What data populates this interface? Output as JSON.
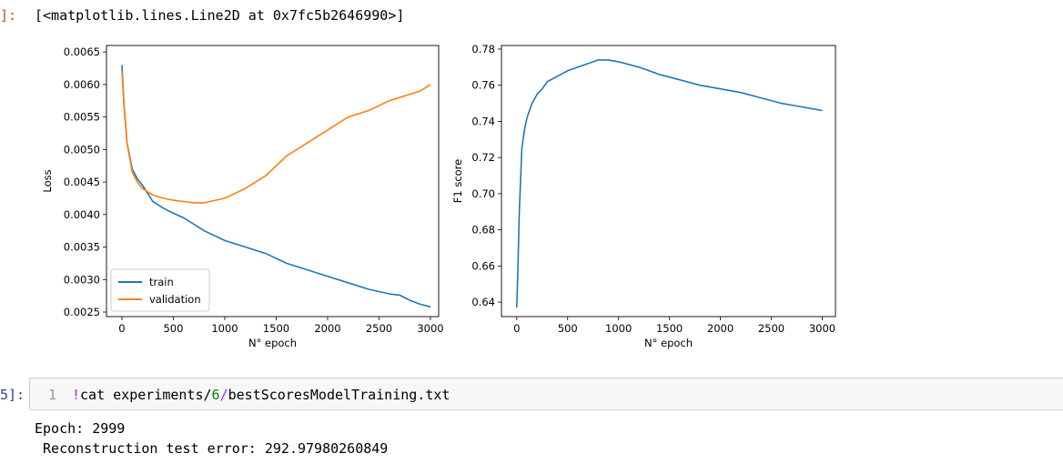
{
  "output_prompt": "]:",
  "output_repr": "[<matplotlib.lines.Line2D at 0x7fc5b2646990>]",
  "input_prompt": "5]:",
  "input_cell": {
    "line_number": "1",
    "bang": "!",
    "cmd_prefix": "cat experiments/",
    "cmd_num": "6",
    "cmd_sep": "/",
    "cmd_suffix": "bestScoresModelTraining.txt"
  },
  "stdout_lines": [
    "Epoch: 2999",
    " Reconstruction test error: 292.97980260849"
  ],
  "chart_data": [
    {
      "type": "line",
      "xlabel": "N° epoch",
      "ylabel": "Loss",
      "xlim": [
        -150,
        3080
      ],
      "ylim": [
        0.00243,
        0.0066
      ],
      "xticks": [
        0,
        500,
        1000,
        1500,
        2000,
        2500,
        3000
      ],
      "yticks": [
        0.0025,
        0.003,
        0.0035,
        0.004,
        0.0045,
        0.005,
        0.0055,
        0.006,
        0.0065
      ],
      "ytick_labels": [
        "0.0025",
        "0.0030",
        "0.0035",
        "0.0040",
        "0.0045",
        "0.0050",
        "0.0055",
        "0.0060",
        "0.0065"
      ],
      "legend": "bottom-left",
      "series": [
        {
          "name": "train",
          "color": "#1f77b4",
          "x": [
            0,
            20,
            50,
            100,
            150,
            200,
            300,
            400,
            500,
            600,
            700,
            800,
            1000,
            1200,
            1400,
            1600,
            1800,
            2000,
            2200,
            2400,
            2600,
            2700,
            2800,
            2900,
            3000
          ],
          "y": [
            0.0063,
            0.0057,
            0.0051,
            0.0047,
            0.00455,
            0.00445,
            0.0042,
            0.0041,
            0.00402,
            0.00395,
            0.00385,
            0.00375,
            0.0036,
            0.0035,
            0.0034,
            0.00325,
            0.00315,
            0.00305,
            0.00295,
            0.00285,
            0.00278,
            0.00276,
            0.00268,
            0.00262,
            0.00258
          ]
        },
        {
          "name": "validation",
          "color": "#ff7f0e",
          "x": [
            0,
            20,
            50,
            100,
            150,
            200,
            300,
            400,
            500,
            600,
            700,
            800,
            1000,
            1200,
            1400,
            1600,
            1800,
            2000,
            2200,
            2400,
            2600,
            2800,
            2900,
            3000
          ],
          "y": [
            0.0062,
            0.0057,
            0.0051,
            0.00465,
            0.0045,
            0.0044,
            0.0043,
            0.00425,
            0.00422,
            0.0042,
            0.00418,
            0.00418,
            0.00425,
            0.0044,
            0.0046,
            0.0049,
            0.0051,
            0.0053,
            0.0055,
            0.0056,
            0.00575,
            0.00585,
            0.0059,
            0.006
          ]
        }
      ]
    },
    {
      "type": "line",
      "xlabel": "N° epoch",
      "ylabel": "F1 score",
      "xlim": [
        -150,
        3130
      ],
      "ylim": [
        0.632,
        0.782
      ],
      "xticks": [
        0,
        500,
        1000,
        1500,
        2000,
        2500,
        3000
      ],
      "yticks": [
        0.64,
        0.66,
        0.68,
        0.7,
        0.72,
        0.74,
        0.76,
        0.78
      ],
      "ytick_labels": [
        "0.64",
        "0.66",
        "0.68",
        "0.70",
        "0.72",
        "0.74",
        "0.76",
        "0.78"
      ],
      "series": [
        {
          "color": "#1f77b4",
          "x": [
            0,
            10,
            25,
            50,
            75,
            100,
            150,
            200,
            250,
            300,
            400,
            500,
            600,
            700,
            800,
            900,
            1000,
            1200,
            1400,
            1600,
            1800,
            2000,
            2200,
            2400,
            2600,
            2800,
            3000
          ],
          "y": [
            0.637,
            0.655,
            0.69,
            0.725,
            0.735,
            0.742,
            0.75,
            0.755,
            0.758,
            0.762,
            0.765,
            0.768,
            0.77,
            0.772,
            0.774,
            0.774,
            0.773,
            0.77,
            0.766,
            0.763,
            0.76,
            0.758,
            0.756,
            0.753,
            0.75,
            0.748,
            0.746
          ]
        }
      ]
    }
  ]
}
